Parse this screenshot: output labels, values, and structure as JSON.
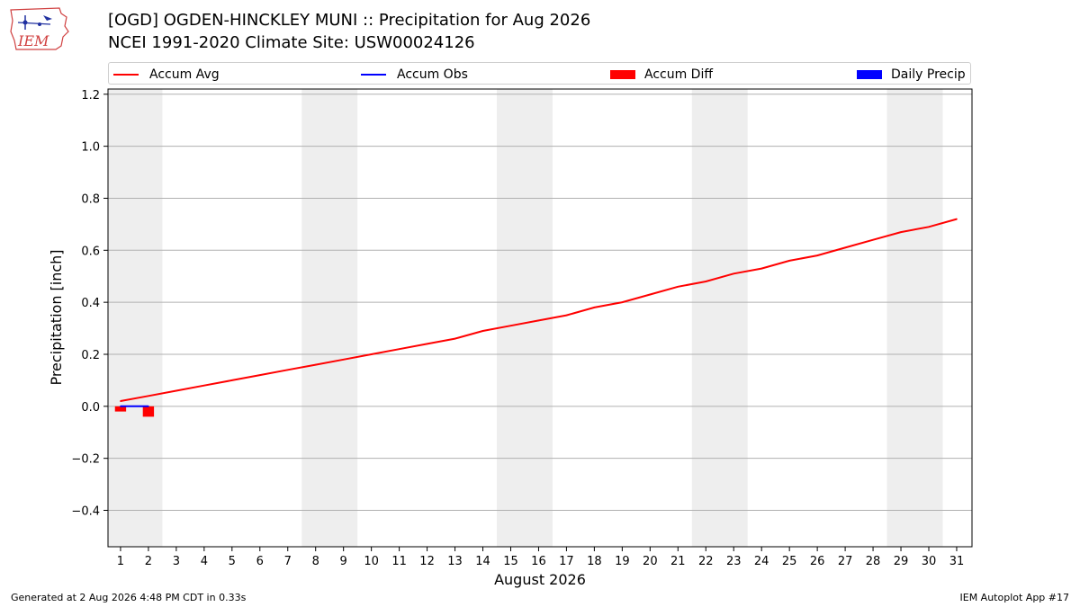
{
  "logo": {
    "text": "IEM"
  },
  "title": {
    "line1": "[OGD] OGDEN-HINCKLEY MUNI :: Precipitation for Aug 2026",
    "line2": "NCEI 1991-2020 Climate Site: USW00024126"
  },
  "legend": {
    "accum_avg": "Accum Avg",
    "accum_obs": "Accum Obs",
    "accum_diff": "Accum Diff",
    "daily_precip": "Daily Precip"
  },
  "colors": {
    "accum_avg": "#ff0000",
    "accum_obs": "#0000ff",
    "accum_diff": "#ff0000",
    "daily_precip": "#0000ff",
    "weekend_shade": "#eeeeee",
    "grid": "#b0b0b0"
  },
  "footer": {
    "left": "Generated at 2 Aug 2026 4:48 PM CDT in 0.33s",
    "right": "IEM Autoplot App #17"
  },
  "chart_data": {
    "type": "line",
    "xlabel": "August 2026",
    "ylabel": "Precipitation [inch]",
    "xlim": [
      0.55,
      31.55
    ],
    "ylim": [
      -0.54,
      1.22
    ],
    "x_ticks": [
      1,
      2,
      3,
      4,
      5,
      6,
      7,
      8,
      9,
      10,
      11,
      12,
      13,
      14,
      15,
      16,
      17,
      18,
      19,
      20,
      21,
      22,
      23,
      24,
      25,
      26,
      27,
      28,
      29,
      30,
      31
    ],
    "y_ticks": [
      -0.4,
      -0.2,
      0.0,
      0.2,
      0.4,
      0.6,
      0.8,
      1.0,
      1.2
    ],
    "y_tick_labels": [
      "−0.4",
      "−0.2",
      "0.0",
      "0.2",
      "0.4",
      "0.6",
      "0.8",
      "1.0",
      "1.2"
    ],
    "grid": "horizontal",
    "legend_position": "top",
    "weekend_shading": [
      [
        1,
        2
      ],
      [
        8,
        9
      ],
      [
        15,
        16
      ],
      [
        22,
        23
      ],
      [
        29,
        30
      ]
    ],
    "series": [
      {
        "name": "Accum Avg",
        "kind": "line",
        "x": [
          1,
          2,
          3,
          4,
          5,
          6,
          7,
          8,
          9,
          10,
          11,
          12,
          13,
          14,
          15,
          16,
          17,
          18,
          19,
          20,
          21,
          22,
          23,
          24,
          25,
          26,
          27,
          28,
          29,
          30,
          31
        ],
        "values": [
          0.02,
          0.04,
          0.06,
          0.08,
          0.1,
          0.12,
          0.14,
          0.16,
          0.18,
          0.2,
          0.22,
          0.24,
          0.26,
          0.29,
          0.31,
          0.33,
          0.35,
          0.38,
          0.4,
          0.43,
          0.46,
          0.48,
          0.51,
          0.53,
          0.56,
          0.58,
          0.61,
          0.64,
          0.67,
          0.69,
          0.72
        ]
      },
      {
        "name": "Accum Obs",
        "kind": "line",
        "x": [
          1,
          2
        ],
        "values": [
          0.0,
          0.0
        ]
      },
      {
        "name": "Accum Diff",
        "kind": "bar",
        "x": [
          1,
          2
        ],
        "values": [
          -0.02,
          -0.04
        ]
      },
      {
        "name": "Daily Precip",
        "kind": "bar",
        "x": [
          1,
          2
        ],
        "values": [
          0.0,
          0.0
        ]
      }
    ]
  }
}
